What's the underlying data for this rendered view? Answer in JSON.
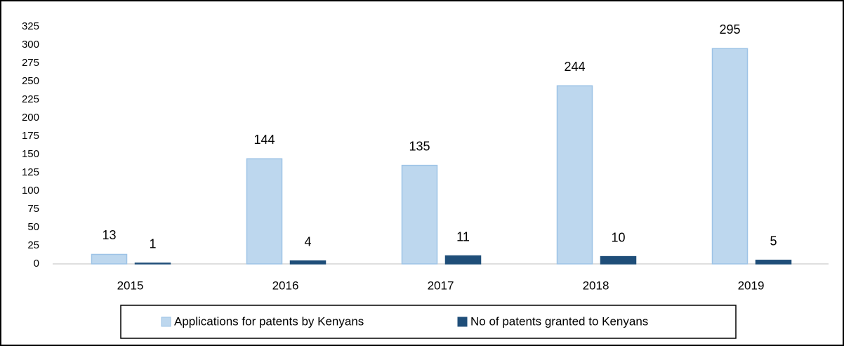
{
  "chart_data": {
    "type": "bar",
    "categories": [
      "2015",
      "2016",
      "2017",
      "2018",
      "2019"
    ],
    "series": [
      {
        "name": "Applications for patents by Kenyans",
        "color": "#bdd7ee",
        "values": [
          13,
          144,
          135,
          244,
          295
        ]
      },
      {
        "name": "No of patents granted to Kenyans",
        "color": "#1f4e79",
        "values": [
          1,
          4,
          11,
          10,
          5
        ]
      }
    ],
    "ylim": [
      0,
      325
    ],
    "yticks": [
      0,
      25,
      50,
      75,
      100,
      125,
      150,
      175,
      200,
      225,
      250,
      275,
      300,
      325
    ],
    "legend": "bottom"
  }
}
